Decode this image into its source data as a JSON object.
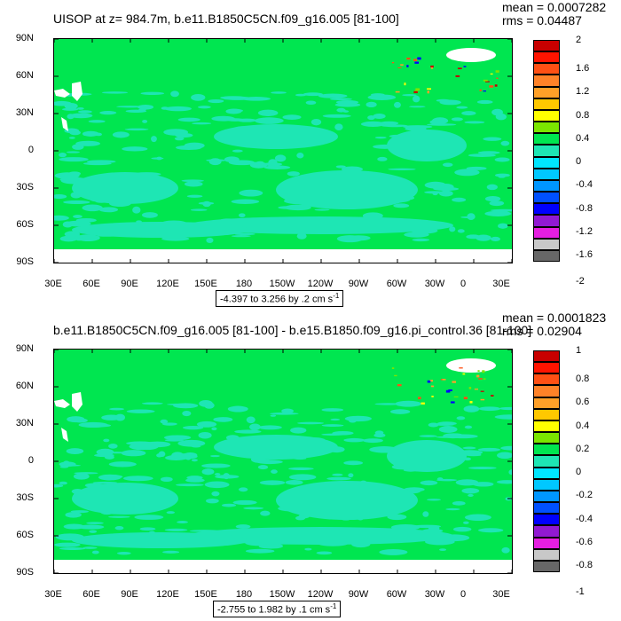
{
  "palette": [
    "#676767",
    "#c8c8c8",
    "#e51ee1",
    "#9119d2",
    "#0000ff",
    "#0050ff",
    "#0096ff",
    "#00c8ff",
    "#00e6ff",
    "#1ee6b4",
    "#00e650",
    "#7be600",
    "#ffff00",
    "#ffc800",
    "#ffa028",
    "#ff8228",
    "#ff5014",
    "#ff1400",
    "#c80000"
  ],
  "panels": [
    {
      "title": "UISOP at z= 984.7m, b.e11.B1850C5CN.f09_g16.005 [81-100]",
      "mean_text": "mean = 0.0007282",
      "rms_text": "rms = 0.04487",
      "range_text": "-4.397 to 3.256 by .2 cm s",
      "range_sup": "-1",
      "yticks": [
        "90N",
        "60N",
        "30N",
        "0",
        "30S",
        "60S",
        "90S"
      ],
      "xticks": [
        "30E",
        "60E",
        "90E",
        "120E",
        "150E",
        "180",
        "150W",
        "120W",
        "90W",
        "60W",
        "30W",
        "0",
        "30E"
      ],
      "colorbar_labels": [
        "2",
        "1.6",
        "1.2",
        "0.8",
        "0.4",
        "0",
        "-0.4",
        "-0.8",
        "-1.2",
        "-1.6",
        "-2"
      ],
      "colors": {
        "ocean": "#00e650",
        "land": "#ffffff",
        "near_zero": "#1ee6b4"
      }
    },
    {
      "title": "b.e11.B1850C5CN.f09_g16.005 [81-100] - b.e15.B1850.f09_g16.pi_control.36 [81-100]",
      "mean_text": "mean = 0.0001823",
      "rms_text": "rms = 0.02904",
      "range_text": "-2.755 to 1.982 by .1 cm s",
      "range_sup": "-1",
      "yticks": [
        "90N",
        "60N",
        "30N",
        "0",
        "30S",
        "60S",
        "90S"
      ],
      "xticks": [
        "30E",
        "60E",
        "90E",
        "120E",
        "150E",
        "180",
        "150W",
        "120W",
        "90W",
        "60W",
        "30W",
        "0",
        "30E"
      ],
      "colorbar_labels": [
        "1",
        "0.8",
        "0.6",
        "0.4",
        "0.2",
        "0",
        "-0.2",
        "-0.4",
        "-0.6",
        "-0.8",
        "-1"
      ],
      "colors": {
        "ocean": "#00e650",
        "land": "#ffffff",
        "near_zero": "#1ee6b4"
      }
    }
  ],
  "chart_data": [
    {
      "type": "heatmap",
      "title": "UISOP at z= 984.7m, b.e11.B1850C5CN.f09_g16.005 [81-100]",
      "xlabel": "",
      "ylabel": "",
      "x_tick_labels": [
        "30E",
        "60E",
        "90E",
        "120E",
        "150E",
        "180",
        "150W",
        "120W",
        "90W",
        "60W",
        "30W",
        "0",
        "30E"
      ],
      "y_tick_labels": [
        "90N",
        "60N",
        "30N",
        "0",
        "30S",
        "60S",
        "90S"
      ],
      "xlim": [
        30,
        390
      ],
      "ylim": [
        -90,
        90
      ],
      "colorbar_levels": [
        -2,
        -1.8,
        -1.6,
        -1.4,
        -1.2,
        -1,
        -0.8,
        -0.6,
        -0.4,
        -0.2,
        0,
        0.2,
        0.4,
        0.6,
        0.8,
        1,
        1.2,
        1.4,
        1.6,
        1.8,
        2
      ],
      "mean": 0.0007282,
      "rms": 0.04487,
      "data_min": -4.397,
      "data_max": 3.256,
      "contour_interval": 0.2,
      "units": "cm s-1"
    },
    {
      "type": "heatmap",
      "title": "b.e11.B1850C5CN.f09_g16.005 [81-100] - b.e15.B1850.f09_g16.pi_control.36 [81-100]",
      "xlabel": "",
      "ylabel": "",
      "x_tick_labels": [
        "30E",
        "60E",
        "90E",
        "120E",
        "150E",
        "180",
        "150W",
        "120W",
        "90W",
        "60W",
        "30W",
        "0",
        "30E"
      ],
      "y_tick_labels": [
        "90N",
        "60N",
        "30N",
        "0",
        "30S",
        "60S",
        "90S"
      ],
      "xlim": [
        30,
        390
      ],
      "ylim": [
        -90,
        90
      ],
      "colorbar_levels": [
        -1,
        -0.9,
        -0.8,
        -0.7,
        -0.6,
        -0.5,
        -0.4,
        -0.3,
        -0.2,
        -0.1,
        0,
        0.1,
        0.2,
        0.3,
        0.4,
        0.5,
        0.6,
        0.7,
        0.8,
        0.9,
        1
      ],
      "mean": 0.0001823,
      "rms": 0.02904,
      "data_min": -2.755,
      "data_max": 1.982,
      "contour_interval": 0.1,
      "units": "cm s-1"
    }
  ]
}
